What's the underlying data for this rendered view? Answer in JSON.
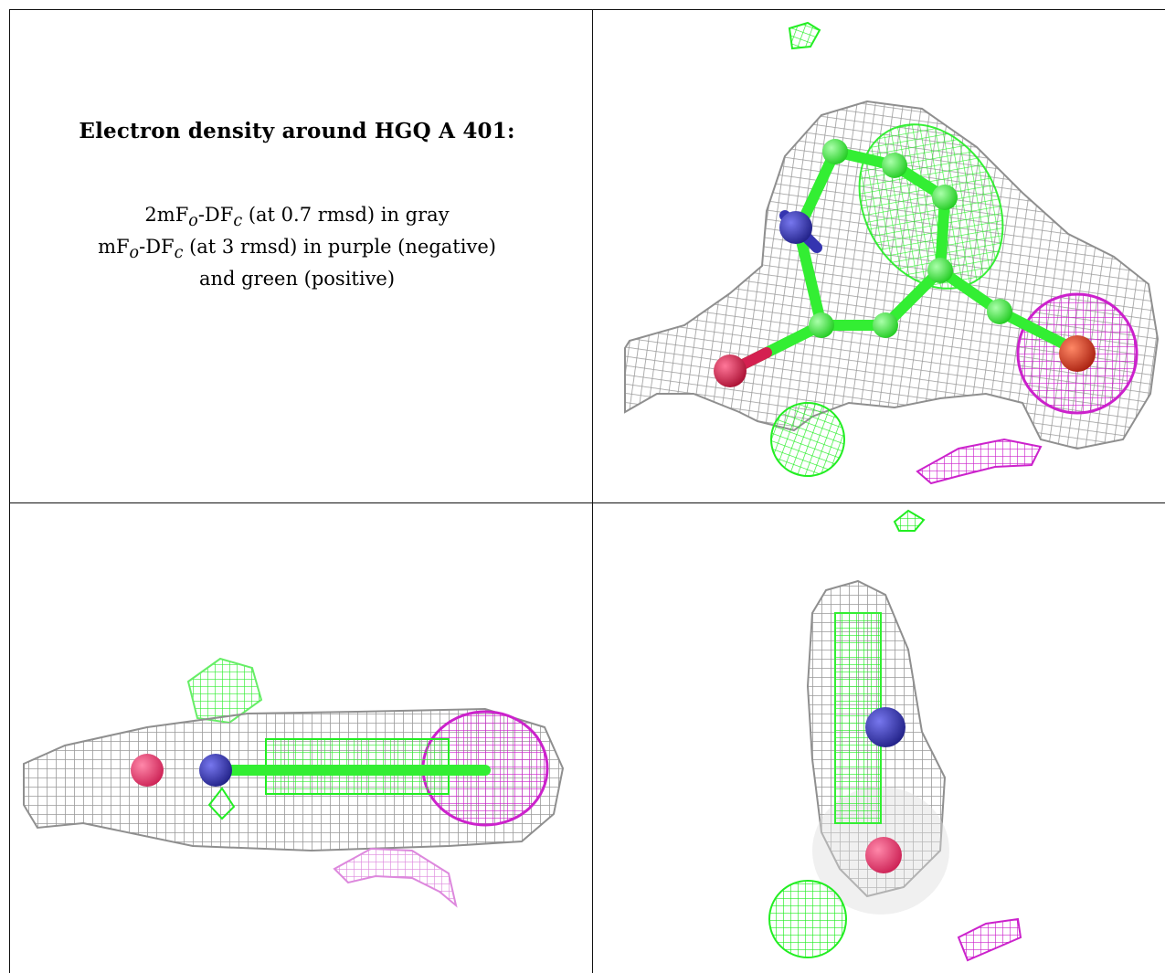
{
  "caption": {
    "title": "Electron density around HGQ A 401:",
    "line1_pre": "2mF",
    "line1_sub1": "o",
    "line1_mid": "-DF",
    "line1_sub2": "c",
    "line1_post": " (at 0.7 rmsd) in gray",
    "line2_pre": "mF",
    "line2_sub1": "o",
    "line2_mid": "-DF",
    "line2_sub2": "c",
    "line2_post": " (at 3 rmsd) in purple (negative)",
    "line3": "and green (positive)"
  },
  "colors": {
    "mesh_gray": "#9a9a9a",
    "carbon_green": "#33ff33",
    "nitrogen_blue": "#3434b0",
    "oxygen_red": "#d42050",
    "negative_purple": "#cc22cc",
    "positive_green": "#22ee22"
  }
}
